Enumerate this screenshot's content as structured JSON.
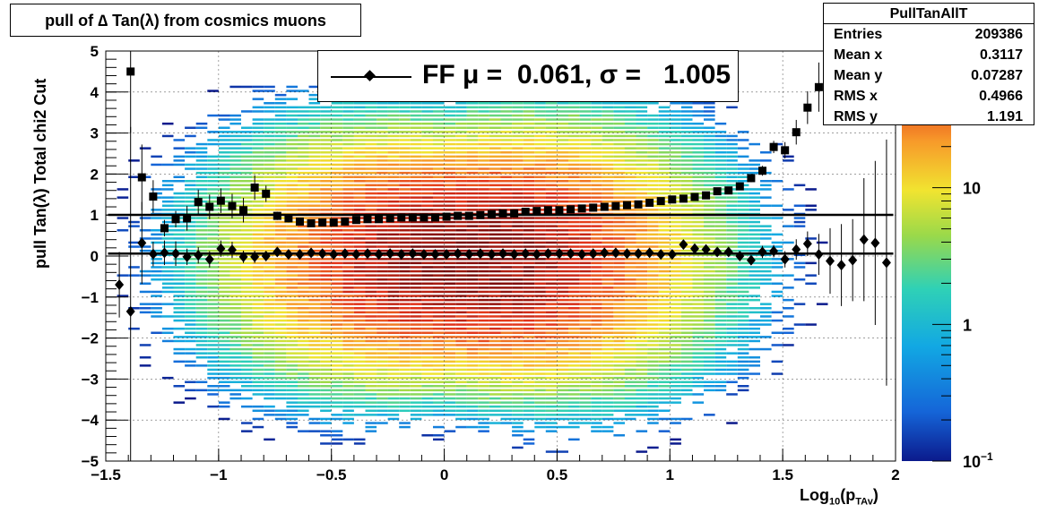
{
  "title": "pull of ∆ Tan(λ) from cosmics muons",
  "legend": {
    "text": "FF μ =  0.061, σ =   1.005"
  },
  "stats": {
    "name": "PullTanAllT",
    "rows": [
      {
        "label": "Entries",
        "value": "209386"
      },
      {
        "label": "Mean x",
        "value": "0.3117"
      },
      {
        "label": "Mean y",
        "value": "0.07287"
      },
      {
        "label": "RMS x",
        "value": "0.4966"
      },
      {
        "label": "RMS y",
        "value": "1.191"
      }
    ]
  },
  "axes": {
    "ylabel": "pull Tan(λ)  Total chi2 Cut",
    "xlabel_main": "Log",
    "xlabel_sub": "10",
    "xlabel_rest": "(p",
    "xlabel_sub2": "TAv",
    "xlabel_end": ")",
    "x_ticks": [
      "−1.5",
      "−1",
      "−0.5",
      "0",
      "0.5",
      "1",
      "1.5",
      "2"
    ],
    "y_ticks": [
      "−5",
      "−4",
      "−3",
      "−2",
      "−1",
      "0",
      "1",
      "2",
      "3",
      "4",
      "5"
    ],
    "z_ticks": [
      "10",
      "1",
      "10"
    ],
    "z_tick_exp": [
      "",
      "",
      "−1"
    ]
  },
  "colors": {
    "accent_high": "#7a0b0b",
    "accent_low": "#0b1a8c"
  },
  "chart_data": {
    "type": "heatmap",
    "xlim": [
      -1.5,
      2.0
    ],
    "ylim": [
      -5,
      5
    ],
    "z_scale": "log",
    "zlim": [
      0.1,
      100
    ],
    "grid": true,
    "legend_position": "top-center",
    "series": [
      {
        "name": "FF",
        "marker": "diamond",
        "x": [
          -1.44,
          -1.39,
          -1.34,
          -1.29,
          -1.24,
          -1.19,
          -1.14,
          -1.09,
          -1.04,
          -0.99,
          -0.94,
          -0.89,
          -0.84,
          -0.79,
          -0.74,
          -0.69,
          -0.64,
          -0.59,
          -0.54,
          -0.49,
          -0.44,
          -0.39,
          -0.34,
          -0.29,
          -0.24,
          -0.19,
          -0.14,
          -0.09,
          -0.04,
          0.01,
          0.06,
          0.11,
          0.16,
          0.21,
          0.26,
          0.31,
          0.36,
          0.41,
          0.46,
          0.51,
          0.56,
          0.61,
          0.66,
          0.71,
          0.76,
          0.81,
          0.86,
          0.91,
          0.96,
          1.01,
          1.06,
          1.11,
          1.16,
          1.21,
          1.26,
          1.31,
          1.36,
          1.41,
          1.46,
          1.51,
          1.56,
          1.61,
          1.66,
          1.71,
          1.76,
          1.81,
          1.86,
          1.91,
          1.96
        ],
        "y": [
          -0.7,
          -1.35,
          0.32,
          0.05,
          0.08,
          0.06,
          -0.02,
          0.02,
          -0.08,
          0.18,
          0.15,
          -0.02,
          -0.02,
          0.0,
          0.1,
          0.04,
          0.04,
          0.08,
          0.06,
          0.04,
          0.06,
          0.04,
          0.06,
          0.04,
          0.06,
          0.04,
          0.06,
          0.04,
          0.04,
          0.04,
          0.06,
          0.04,
          0.06,
          0.04,
          0.06,
          0.04,
          0.06,
          0.04,
          0.06,
          0.06,
          0.06,
          0.04,
          0.06,
          0.08,
          0.08,
          0.06,
          0.06,
          0.08,
          0.04,
          0.04,
          0.28,
          0.18,
          0.16,
          0.1,
          0.1,
          0.0,
          -0.1,
          0.1,
          0.12,
          -0.08,
          0.16,
          0.3,
          0.04,
          -0.12,
          -0.22,
          -0.1,
          0.4,
          0.32,
          -0.16
        ],
        "y_err": [
          0.8,
          4.5,
          1.0,
          0.3,
          0.3,
          0.3,
          0.2,
          0.2,
          0.2,
          0.2,
          0.2,
          0.15,
          0.15,
          0.12,
          0.1,
          0.1,
          0.08,
          0.06,
          0.05,
          0.05,
          0.04,
          0.04,
          0.04,
          0.03,
          0.03,
          0.03,
          0.03,
          0.03,
          0.03,
          0.03,
          0.03,
          0.03,
          0.03,
          0.03,
          0.03,
          0.03,
          0.03,
          0.03,
          0.03,
          0.03,
          0.03,
          0.03,
          0.04,
          0.04,
          0.04,
          0.04,
          0.05,
          0.05,
          0.05,
          0.06,
          0.06,
          0.07,
          0.08,
          0.08,
          0.1,
          0.1,
          0.12,
          0.15,
          0.15,
          0.2,
          0.25,
          0.3,
          0.5,
          0.8,
          1.0,
          1.0,
          1.5,
          2.0,
          3.0
        ]
      },
      {
        "name": "sigma",
        "marker": "square",
        "x": [
          -1.39,
          -1.34,
          -1.29,
          -1.24,
          -1.19,
          -1.14,
          -1.09,
          -1.04,
          -0.99,
          -0.94,
          -0.89,
          -0.84,
          -0.79,
          -0.74,
          -0.69,
          -0.64,
          -0.59,
          -0.54,
          -0.49,
          -0.44,
          -0.39,
          -0.34,
          -0.29,
          -0.24,
          -0.19,
          -0.14,
          -0.09,
          -0.04,
          0.01,
          0.06,
          0.11,
          0.16,
          0.21,
          0.26,
          0.31,
          0.36,
          0.41,
          0.46,
          0.51,
          0.56,
          0.61,
          0.66,
          0.71,
          0.76,
          0.81,
          0.86,
          0.91,
          0.96,
          1.01,
          1.06,
          1.11,
          1.16,
          1.21,
          1.26,
          1.31,
          1.36,
          1.41,
          1.46,
          1.51,
          1.56,
          1.61,
          1.66
        ],
        "y": [
          4.5,
          1.92,
          1.45,
          0.68,
          0.9,
          0.92,
          1.32,
          1.2,
          1.35,
          1.22,
          1.12,
          1.67,
          1.52,
          0.98,
          0.92,
          0.84,
          0.8,
          0.82,
          0.82,
          0.84,
          0.88,
          0.9,
          0.9,
          0.92,
          0.94,
          0.94,
          0.94,
          0.94,
          0.96,
          0.98,
          0.98,
          1.0,
          1.02,
          1.04,
          1.04,
          1.08,
          1.1,
          1.12,
          1.12,
          1.14,
          1.16,
          1.18,
          1.2,
          1.22,
          1.24,
          1.26,
          1.3,
          1.34,
          1.38,
          1.4,
          1.44,
          1.48,
          1.58,
          1.6,
          1.7,
          1.9,
          2.08,
          2.66,
          2.58,
          3.02,
          3.62,
          4.12
        ],
        "y_err": [
          1.5,
          0.8,
          0.4,
          0.2,
          0.2,
          0.3,
          0.3,
          0.3,
          0.3,
          0.3,
          0.3,
          0.3,
          0.2,
          0.1,
          0.1,
          0.06,
          0.05,
          0.04,
          0.04,
          0.03,
          0.03,
          0.03,
          0.03,
          0.02,
          0.02,
          0.02,
          0.02,
          0.02,
          0.02,
          0.02,
          0.02,
          0.02,
          0.02,
          0.02,
          0.02,
          0.02,
          0.02,
          0.02,
          0.02,
          0.02,
          0.02,
          0.02,
          0.02,
          0.02,
          0.03,
          0.03,
          0.03,
          0.03,
          0.04,
          0.04,
          0.05,
          0.06,
          0.07,
          0.07,
          0.08,
          0.1,
          0.12,
          0.15,
          0.2,
          0.3,
          0.4,
          0.6
        ]
      }
    ],
    "reference_lines_y": [
      0.061,
      1.005
    ],
    "density_center": {
      "x": 0.1,
      "y": 0.0
    },
    "density_peak": 100
  }
}
